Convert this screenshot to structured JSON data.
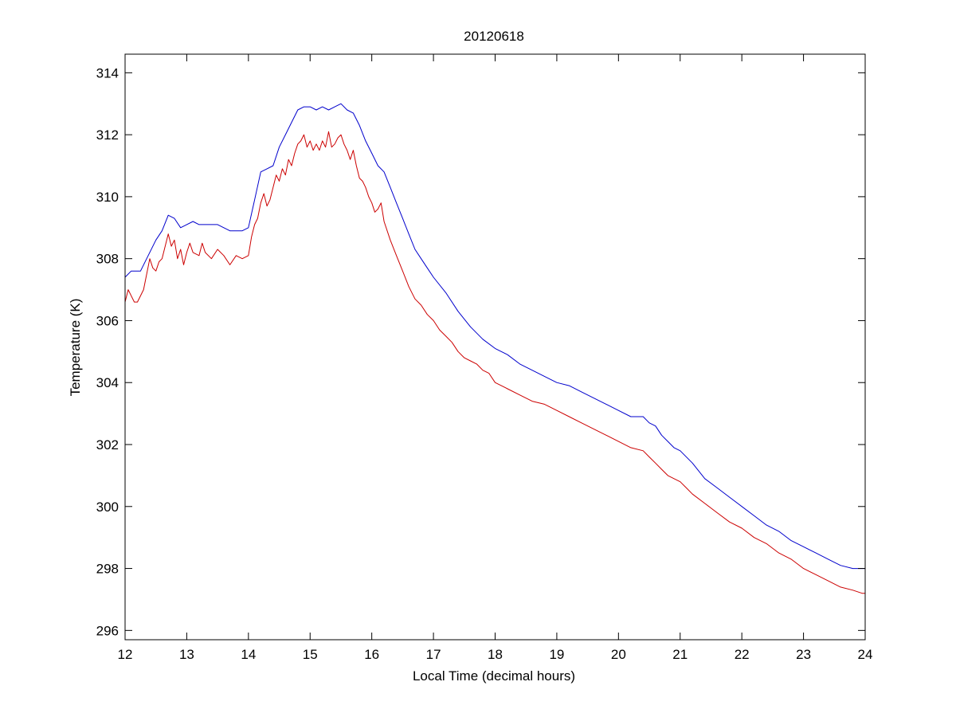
{
  "chart_data": {
    "type": "line",
    "title": "20120618",
    "xlabel": "Local Time (decimal hours)",
    "ylabel": "Temperature (K)",
    "xlim": [
      12,
      24
    ],
    "ylim": [
      295.7,
      314.6
    ],
    "xticks": [
      12,
      13,
      14,
      15,
      16,
      17,
      18,
      19,
      20,
      21,
      22,
      23,
      24
    ],
    "yticks": [
      296,
      298,
      300,
      302,
      304,
      306,
      308,
      310,
      312,
      314
    ],
    "grid": false,
    "legend": "none",
    "series": [
      {
        "color": "#0000cc",
        "x": [
          12.0,
          12.1,
          12.25,
          12.35,
          12.5,
          12.6,
          12.7,
          12.8,
          12.9,
          13.0,
          13.1,
          13.2,
          13.3,
          13.5,
          13.7,
          13.8,
          13.9,
          14.0,
          14.1,
          14.2,
          14.3,
          14.4,
          14.5,
          14.6,
          14.7,
          14.8,
          14.9,
          15.0,
          15.1,
          15.2,
          15.3,
          15.4,
          15.5,
          15.6,
          15.7,
          15.8,
          15.9,
          16.0,
          16.1,
          16.2,
          16.3,
          16.4,
          16.5,
          16.6,
          16.7,
          16.8,
          16.9,
          17.0,
          17.2,
          17.4,
          17.6,
          17.8,
          18.0,
          18.2,
          18.4,
          18.6,
          18.8,
          19.0,
          19.2,
          19.4,
          19.6,
          19.8,
          20.0,
          20.2,
          20.4,
          20.5,
          20.6,
          20.7,
          20.8,
          20.9,
          21.0,
          21.2,
          21.4,
          21.6,
          21.8,
          22.0,
          22.2,
          22.4,
          22.6,
          22.8,
          23.0,
          23.2,
          23.4,
          23.6,
          23.8,
          23.95,
          24.0
        ],
        "y": [
          307.4,
          307.6,
          307.6,
          308.0,
          308.6,
          308.9,
          309.4,
          309.3,
          309.0,
          309.1,
          309.2,
          309.1,
          309.1,
          309.1,
          308.9,
          308.9,
          308.9,
          309.0,
          309.9,
          310.8,
          310.9,
          311.0,
          311.6,
          312.0,
          312.4,
          312.8,
          312.9,
          312.9,
          312.8,
          312.9,
          312.8,
          312.9,
          313.0,
          312.8,
          312.7,
          312.3,
          311.8,
          311.4,
          311.0,
          310.8,
          310.3,
          309.8,
          309.3,
          308.8,
          308.3,
          308.0,
          307.7,
          307.4,
          306.9,
          306.3,
          305.8,
          305.4,
          305.1,
          304.9,
          304.6,
          304.4,
          304.2,
          304.0,
          303.9,
          303.7,
          303.5,
          303.3,
          303.1,
          302.9,
          302.9,
          302.7,
          302.6,
          302.3,
          302.1,
          301.9,
          301.8,
          301.4,
          300.9,
          300.6,
          300.3,
          300.0,
          299.7,
          299.4,
          299.2,
          298.9,
          298.7,
          298.5,
          298.3,
          298.1,
          298.0,
          298.0,
          298.0
        ]
      },
      {
        "color": "#cc0000",
        "x": [
          12.0,
          12.05,
          12.1,
          12.15,
          12.2,
          12.3,
          12.4,
          12.45,
          12.5,
          12.55,
          12.6,
          12.7,
          12.75,
          12.8,
          12.85,
          12.9,
          12.95,
          13.0,
          13.05,
          13.1,
          13.2,
          13.25,
          13.3,
          13.4,
          13.5,
          13.6,
          13.7,
          13.8,
          13.9,
          14.0,
          14.05,
          14.1,
          14.15,
          14.2,
          14.25,
          14.3,
          14.35,
          14.4,
          14.45,
          14.5,
          14.55,
          14.6,
          14.65,
          14.7,
          14.75,
          14.8,
          14.85,
          14.9,
          14.95,
          15.0,
          15.05,
          15.1,
          15.15,
          15.2,
          15.25,
          15.3,
          15.35,
          15.4,
          15.45,
          15.5,
          15.55,
          15.6,
          15.65,
          15.7,
          15.75,
          15.8,
          15.85,
          15.9,
          15.95,
          16.0,
          16.05,
          16.1,
          16.15,
          16.2,
          16.3,
          16.4,
          16.5,
          16.6,
          16.7,
          16.8,
          16.9,
          17.0,
          17.1,
          17.2,
          17.3,
          17.4,
          17.5,
          17.6,
          17.7,
          17.8,
          17.9,
          18.0,
          18.2,
          18.4,
          18.6,
          18.8,
          19.0,
          19.2,
          19.4,
          19.6,
          19.8,
          20.0,
          20.2,
          20.4,
          20.5,
          20.6,
          20.7,
          20.8,
          20.9,
          21.0,
          21.1,
          21.2,
          21.4,
          21.6,
          21.8,
          22.0,
          22.2,
          22.4,
          22.6,
          22.8,
          23.0,
          23.2,
          23.4,
          23.6,
          23.8,
          23.95,
          24.0
        ],
        "y": [
          306.6,
          307.0,
          306.8,
          306.6,
          306.6,
          307.0,
          308.0,
          307.7,
          307.6,
          307.9,
          308.0,
          308.8,
          308.4,
          308.6,
          308.0,
          308.3,
          307.8,
          308.2,
          308.5,
          308.2,
          308.1,
          308.5,
          308.2,
          308.0,
          308.3,
          308.1,
          307.8,
          308.1,
          308.0,
          308.1,
          308.7,
          309.1,
          309.3,
          309.8,
          310.1,
          309.7,
          309.9,
          310.3,
          310.7,
          310.5,
          310.9,
          310.7,
          311.2,
          311.0,
          311.4,
          311.7,
          311.8,
          312.0,
          311.6,
          311.8,
          311.5,
          311.7,
          311.5,
          311.8,
          311.6,
          312.1,
          311.6,
          311.7,
          311.9,
          312.0,
          311.7,
          311.5,
          311.2,
          311.5,
          311.0,
          310.6,
          310.5,
          310.3,
          310.0,
          309.8,
          309.5,
          309.6,
          309.8,
          309.2,
          308.6,
          308.1,
          307.6,
          307.1,
          306.7,
          306.5,
          306.2,
          306.0,
          305.7,
          305.5,
          305.3,
          305.0,
          304.8,
          304.7,
          304.6,
          304.4,
          304.3,
          304.0,
          303.8,
          303.6,
          303.4,
          303.3,
          303.1,
          302.9,
          302.7,
          302.5,
          302.3,
          302.1,
          301.9,
          301.8,
          301.6,
          301.4,
          301.2,
          301.0,
          300.9,
          300.8,
          300.6,
          300.4,
          300.1,
          299.8,
          299.5,
          299.3,
          299.0,
          298.8,
          298.5,
          298.3,
          298.0,
          297.8,
          297.6,
          297.4,
          297.3,
          297.2,
          297.2
        ]
      }
    ]
  }
}
